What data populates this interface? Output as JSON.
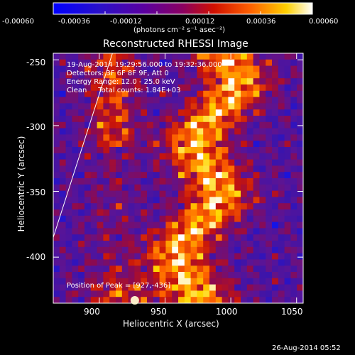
{
  "chart_data": {
    "type": "heatmap",
    "title": "Reconstructed RHESSI Image",
    "xlabel": "Heliocentric X (arcsec)",
    "ylabel": "Heliocentric Y (arcsec)",
    "xlim": [
      865,
      1055
    ],
    "ylim": [
      -435,
      -245
    ],
    "x_ticks": [
      "900",
      "950",
      "1000",
      "1050"
    ],
    "y_ticks": [
      "-250",
      "-300",
      "-350",
      "-400"
    ],
    "x_tick_values": [
      900,
      950,
      1000,
      1050
    ],
    "y_tick_values": [
      -250,
      -300,
      -350,
      -400
    ],
    "colorbar": {
      "range": [
        -0.0006,
        0.0006
      ],
      "tick_labels": [
        "-0.00060",
        "-0.00036",
        "-0.00012",
        "0.00012",
        "0.00036",
        "0.00060"
      ],
      "tick_values": [
        -0.0006,
        -0.00036,
        -0.00012,
        0.00012,
        0.00036,
        0.0006
      ],
      "units_label": "(photons cm⁻² s⁻¹ asec⁻²)",
      "colors": [
        "#0000ff",
        "#3a00b0",
        "#6a00a0",
        "#c01010",
        "#ff6000",
        "#ffd000",
        "#ffffff"
      ]
    },
    "annotations": {
      "time_range": "19-Aug-2014 19:29:56.000 to 19:32:36.000",
      "detectors": "Detectors: 3F 6F 8F 9F, Att 0",
      "energy_range": "Energy Range: 12.0 - 25.0 keV",
      "clean": "Clean     Total counts: 1.84E+03",
      "peak": "Position of Peak = [927,-436]"
    },
    "peak_position": [
      927,
      -436
    ],
    "limb_color": "#ffffff",
    "grid": false
  },
  "footer": {
    "timestamp": "26-Aug-2014 05:52"
  }
}
